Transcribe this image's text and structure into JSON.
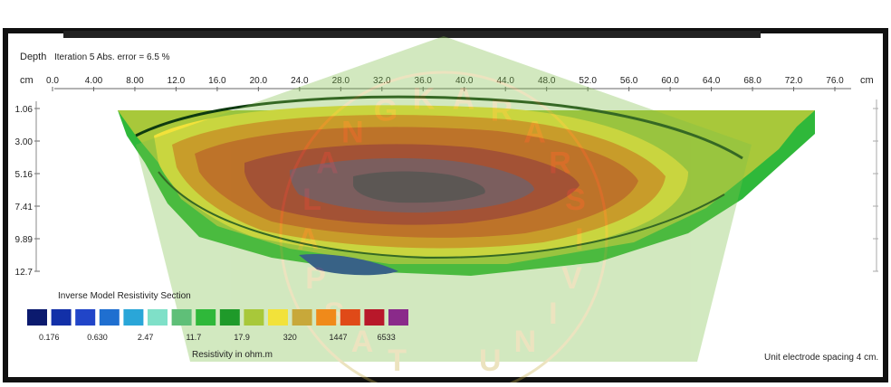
{
  "chart_data": {
    "type": "heatmap",
    "subtitle": "Iteration 5 Abs. error = 6.5 %",
    "ylabel_top": "Depth",
    "x_unit": "cm",
    "y_unit": "cm",
    "x_ticks": [
      "0.0",
      "4.00",
      "8.00",
      "12.0",
      "16.0",
      "20.0",
      "24.0",
      "28.0",
      "32.0",
      "36.0",
      "40.0",
      "44.0",
      "48.0",
      "52.0",
      "56.0",
      "60.0",
      "64.0",
      "68.0",
      "72.0",
      "76.0"
    ],
    "y_ticks": [
      "1.06",
      "3.00",
      "5.16",
      "7.41",
      "9.89",
      "12.7"
    ],
    "legend_title": "Inverse Model Resistivity Section",
    "legend_colors": [
      "#0b1a6e",
      "#1230a8",
      "#2145c8",
      "#1f6fd0",
      "#2aa6d8",
      "#7fe0c8",
      "#5fbf78",
      "#2fb83a",
      "#1f9a2a",
      "#a8c83a",
      "#f2e23a",
      "#c8a83a",
      "#f08a1a",
      "#e04a18",
      "#b8182a",
      "#8a2a8a"
    ],
    "legend_values": [
      "0.176",
      "0.630",
      "2.47",
      "11.7",
      "17.9",
      "320",
      "1447",
      "6533"
    ],
    "legend_xlabel": "Resistivity in ohm.m",
    "footer": "Unit electrode spacing 4 cm."
  },
  "watermark": {
    "text": [
      "T",
      "A",
      "S",
      "P",
      "A",
      "L",
      "A",
      "N",
      "G",
      "K",
      "A",
      "R",
      "A",
      "R",
      "S",
      "I",
      "V",
      "I",
      "N",
      "U"
    ],
    "color": "#c9b24a"
  }
}
